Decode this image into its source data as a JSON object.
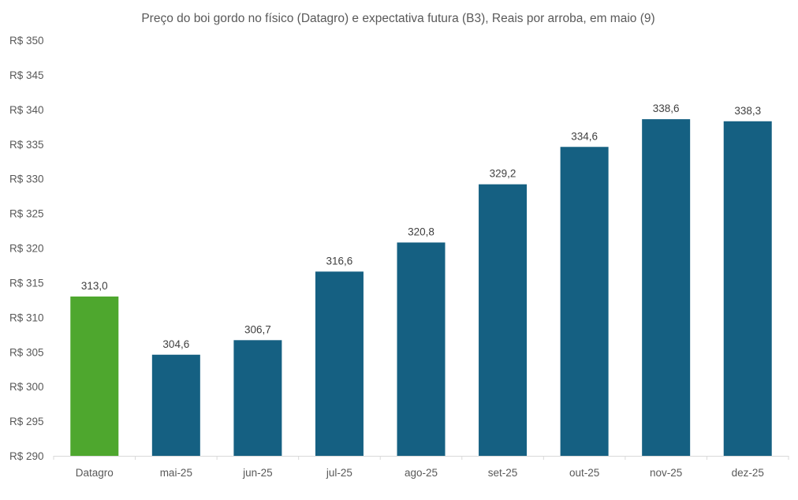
{
  "chart_data": {
    "type": "bar",
    "title": "Preço do boi gordo no físico (Datagro)  e expectativa futura (B3), Reais por arroba, em maio (9)",
    "xlabel": "",
    "ylabel": "",
    "categories": [
      "Datagro",
      "mai-25",
      "jun-25",
      "jul-25",
      "ago-25",
      "set-25",
      "out-25",
      "nov-25",
      "dez-25"
    ],
    "values": [
      313.0,
      304.6,
      306.7,
      316.6,
      320.8,
      329.2,
      334.6,
      338.6,
      338.3
    ],
    "data_labels": [
      "313,0",
      "304,6",
      "306,7",
      "316,6",
      "320,8",
      "329,2",
      "334,6",
      "338,6",
      "338,3"
    ],
    "bar_colors": [
      "#4EA72E",
      "#156082",
      "#156082",
      "#156082",
      "#156082",
      "#156082",
      "#156082",
      "#156082",
      "#156082"
    ],
    "ylim": [
      290,
      350
    ],
    "yticks": [
      290,
      295,
      300,
      305,
      310,
      315,
      320,
      325,
      330,
      335,
      340,
      345,
      350
    ],
    "ytick_labels": [
      "R$ 290",
      "R$ 295",
      "R$ 300",
      "R$ 305",
      "R$ 310",
      "R$ 315",
      "R$ 320",
      "R$ 325",
      "R$ 330",
      "R$ 335",
      "R$ 340",
      "R$ 345",
      "R$ 350"
    ],
    "grid": false,
    "legend": "none"
  }
}
